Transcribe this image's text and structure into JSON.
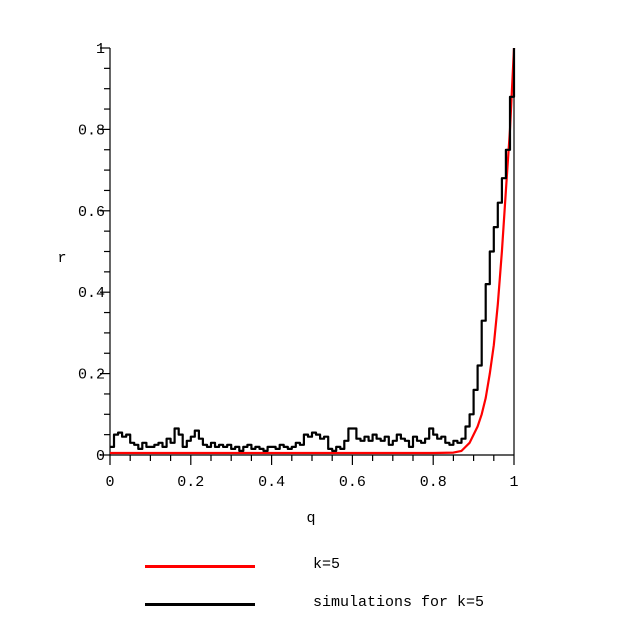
{
  "chart_data": {
    "type": "line",
    "title": "",
    "xlabel": "q",
    "ylabel": "r",
    "xlim": [
      0,
      1
    ],
    "ylim": [
      0,
      1
    ],
    "xticks": [
      "0",
      "0.2",
      "0.4",
      "0.6",
      "0.8",
      "1"
    ],
    "yticks": [
      "0",
      "0.2",
      "0.4",
      "0.6",
      "0.8",
      "1"
    ],
    "grid": false,
    "legend_position": "bottom",
    "series": [
      {
        "name": "k=5",
        "color": "#ff0000",
        "style": "smooth",
        "x": [
          0,
          0.1,
          0.2,
          0.3,
          0.4,
          0.5,
          0.6,
          0.7,
          0.8,
          0.85,
          0.87,
          0.88,
          0.89,
          0.9,
          0.91,
          0.92,
          0.93,
          0.94,
          0.95,
          0.96,
          0.97,
          0.98,
          0.99,
          1.0
        ],
        "y": [
          0.005,
          0.005,
          0.005,
          0.005,
          0.005,
          0.005,
          0.005,
          0.005,
          0.005,
          0.006,
          0.01,
          0.02,
          0.03,
          0.05,
          0.07,
          0.1,
          0.14,
          0.2,
          0.27,
          0.37,
          0.5,
          0.65,
          0.8,
          1.0
        ]
      },
      {
        "name": "simulations for k=5",
        "color": "#000000",
        "style": "step",
        "x": [
          0,
          0.01,
          0.02,
          0.03,
          0.04,
          0.05,
          0.06,
          0.07,
          0.08,
          0.09,
          0.1,
          0.11,
          0.12,
          0.13,
          0.14,
          0.15,
          0.16,
          0.17,
          0.18,
          0.19,
          0.2,
          0.21,
          0.22,
          0.23,
          0.24,
          0.25,
          0.26,
          0.27,
          0.28,
          0.29,
          0.3,
          0.31,
          0.32,
          0.33,
          0.34,
          0.35,
          0.36,
          0.37,
          0.38,
          0.39,
          0.4,
          0.41,
          0.42,
          0.43,
          0.44,
          0.45,
          0.46,
          0.47,
          0.48,
          0.49,
          0.5,
          0.51,
          0.52,
          0.53,
          0.54,
          0.55,
          0.56,
          0.57,
          0.58,
          0.59,
          0.6,
          0.61,
          0.62,
          0.63,
          0.64,
          0.65,
          0.66,
          0.67,
          0.68,
          0.69,
          0.7,
          0.71,
          0.72,
          0.73,
          0.74,
          0.75,
          0.76,
          0.77,
          0.78,
          0.79,
          0.8,
          0.81,
          0.82,
          0.83,
          0.84,
          0.85,
          0.86,
          0.87,
          0.88,
          0.89,
          0.9,
          0.91,
          0.92,
          0.93,
          0.94,
          0.95,
          0.96,
          0.97,
          0.98,
          0.99,
          1.0
        ],
        "y": [
          0.02,
          0.05,
          0.055,
          0.045,
          0.05,
          0.03,
          0.025,
          0.015,
          0.03,
          0.02,
          0.02,
          0.025,
          0.03,
          0.02,
          0.04,
          0.03,
          0.065,
          0.05,
          0.02,
          0.035,
          0.045,
          0.06,
          0.04,
          0.025,
          0.02,
          0.03,
          0.02,
          0.025,
          0.02,
          0.025,
          0.015,
          0.02,
          0.01,
          0.02,
          0.025,
          0.015,
          0.02,
          0.015,
          0.01,
          0.02,
          0.02,
          0.015,
          0.025,
          0.02,
          0.015,
          0.02,
          0.03,
          0.025,
          0.05,
          0.045,
          0.055,
          0.05,
          0.04,
          0.045,
          0.015,
          0.01,
          0.02,
          0.015,
          0.035,
          0.065,
          0.065,
          0.04,
          0.035,
          0.045,
          0.035,
          0.05,
          0.04,
          0.035,
          0.045,
          0.025,
          0.035,
          0.05,
          0.04,
          0.035,
          0.02,
          0.045,
          0.035,
          0.03,
          0.04,
          0.065,
          0.05,
          0.04,
          0.045,
          0.03,
          0.025,
          0.035,
          0.03,
          0.04,
          0.07,
          0.1,
          0.16,
          0.22,
          0.33,
          0.42,
          0.5,
          0.56,
          0.62,
          0.68,
          0.75,
          0.88,
          1.0
        ]
      }
    ]
  },
  "legend": {
    "items": [
      {
        "label": "k=5",
        "color": "#ff0000"
      },
      {
        "label": "simulations for k=5",
        "color": "#000000"
      }
    ]
  }
}
